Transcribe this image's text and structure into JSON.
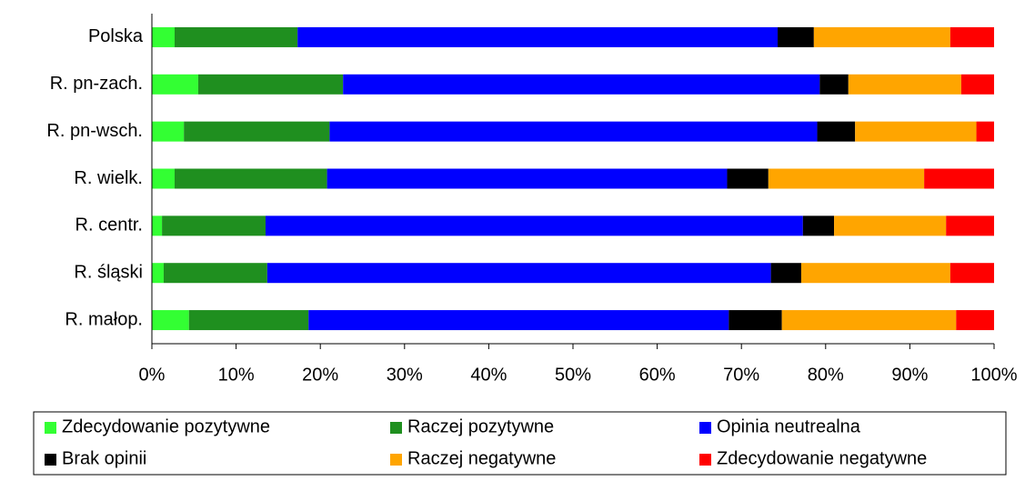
{
  "chart_data": {
    "type": "stacked-barh",
    "categories": [
      "Polska",
      "R. pn-zach.",
      "R. pn-wsch.",
      "R. wielk.",
      "R. centr.",
      "R. śląski",
      "R. małop."
    ],
    "series": [
      {
        "name": "Zdecydowanie pozytywne",
        "color": "#33ff33",
        "values": [
          2.7,
          5.5,
          3.8,
          2.7,
          1.2,
          1.4,
          4.4
        ]
      },
      {
        "name": "Raczej pozytywne",
        "color": "#1f8f1f",
        "values": [
          14.6,
          17.2,
          17.3,
          18.1,
          12.3,
          12.3,
          14.2
        ]
      },
      {
        "name": "Opinia neutrealna",
        "color": "#0000ff",
        "values": [
          57.0,
          56.6,
          57.9,
          47.5,
          63.8,
          59.8,
          49.9
        ]
      },
      {
        "name": "Brak opinii",
        "color": "#000000",
        "values": [
          4.3,
          3.4,
          4.5,
          4.9,
          3.7,
          3.6,
          6.3
        ]
      },
      {
        "name": "Raczej negatywne",
        "color": "#ffa500",
        "values": [
          16.2,
          13.4,
          14.4,
          18.5,
          13.3,
          17.7,
          20.7
        ]
      },
      {
        "name": "Zdecydowanie negatywne",
        "color": "#ff0000",
        "values": [
          5.2,
          3.9,
          2.1,
          8.3,
          5.7,
          5.2,
          4.5
        ]
      }
    ],
    "xlim": [
      0,
      100
    ],
    "xticks": [
      {
        "value": 0,
        "label": "0%"
      },
      {
        "value": 10,
        "label": "10%"
      },
      {
        "value": 20,
        "label": "20%"
      },
      {
        "value": 30,
        "label": "30%"
      },
      {
        "value": 40,
        "label": "40%"
      },
      {
        "value": 50,
        "label": "50%"
      },
      {
        "value": 60,
        "label": "60%"
      },
      {
        "value": 70,
        "label": "70%"
      },
      {
        "value": 80,
        "label": "80%"
      },
      {
        "value": 90,
        "label": "90%"
      },
      {
        "value": 100,
        "label": "100%"
      }
    ],
    "legend": "bottom"
  }
}
